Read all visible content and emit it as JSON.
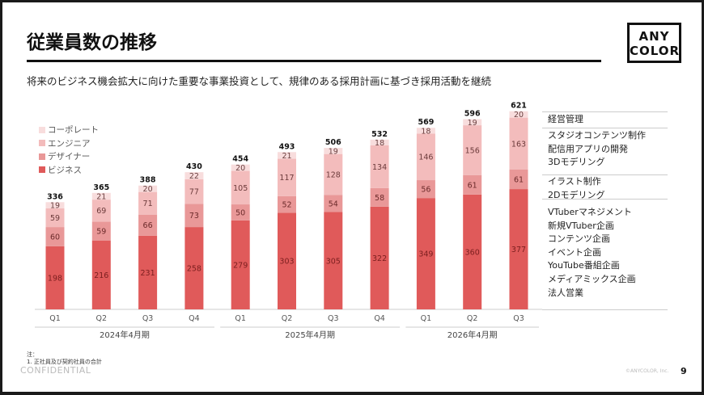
{
  "header": {
    "title": "従業員数の推移",
    "logo": "ANY COLOR",
    "subtitle": "将来のビジネス機会拡大に向けた重要な事業投資として、規律のある採用計画に基づき採用活動を継続"
  },
  "chart_data": {
    "type": "bar",
    "stacked": true,
    "categories": [
      "Q1",
      "Q2",
      "Q3",
      "Q4",
      "Q1",
      "Q2",
      "Q3",
      "Q4",
      "Q1",
      "Q2",
      "Q3"
    ],
    "groups": [
      {
        "label": "2024年4月期",
        "count": 4
      },
      {
        "label": "2025年4月期",
        "count": 4
      },
      {
        "label": "2026年4月期",
        "count": 3
      }
    ],
    "series": [
      {
        "name": "ビジネス",
        "color": "#e05a5a",
        "values": [
          198,
          216,
          231,
          258,
          279,
          303,
          305,
          322,
          349,
          360,
          377
        ]
      },
      {
        "name": "デザイナー",
        "color": "#e99898",
        "values": [
          60,
          59,
          66,
          73,
          50,
          52,
          54,
          58,
          56,
          61,
          61
        ]
      },
      {
        "name": "エンジニア",
        "color": "#f3bcbc",
        "values": [
          59,
          69,
          71,
          77,
          105,
          117,
          128,
          134,
          146,
          156,
          163
        ]
      },
      {
        "name": "コーポレート",
        "color": "#f8dddd",
        "values": [
          19,
          21,
          20,
          22,
          20,
          21,
          19,
          18,
          18,
          19,
          20
        ]
      }
    ],
    "totals": [
      336,
      365,
      388,
      430,
      454,
      493,
      506,
      532,
      569,
      596,
      621
    ],
    "legend_position": "top-left",
    "grid": false
  },
  "panel": {
    "groups": [
      {
        "lines": [
          "経営管理"
        ]
      },
      {
        "lines": [
          "スタジオコンテンツ制作",
          "配信用アプリの開発",
          "3Dモデリング"
        ]
      },
      {
        "lines": [
          "イラスト制作",
          "2Dモデリング"
        ]
      },
      {
        "lines": [
          "VTuberマネジメント",
          "新規VTuber企画",
          "コンテンツ企画",
          "イベント企画",
          "YouTube番組企画",
          "メディアミックス企画",
          "法人営業"
        ]
      }
    ]
  },
  "footer": {
    "note_title": "注：",
    "note": "1. 正社員及び契約社員の合計",
    "confidential": "CONFIDENTIAL",
    "company": "©ANYCOLOR, Inc.",
    "page": "9"
  }
}
